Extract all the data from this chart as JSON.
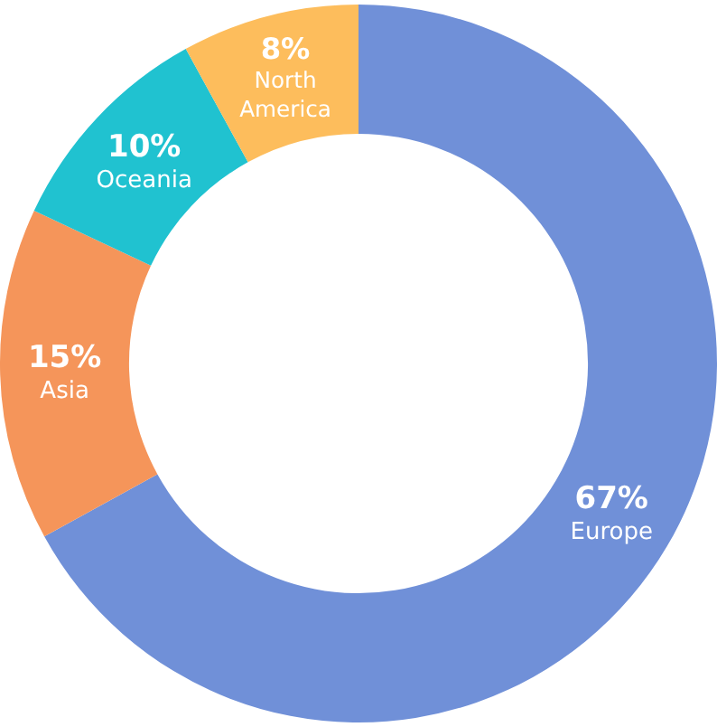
{
  "chart_data": {
    "type": "donut",
    "categories": [
      "Europe",
      "Asia",
      "Oceania",
      "North America"
    ],
    "values": [
      67,
      15,
      10,
      8
    ],
    "value_labels": [
      "67%",
      "15%",
      "10%",
      "8%"
    ],
    "colors": [
      "#7090d8",
      "#f5955a",
      "#20c2d0",
      "#fdbd5c"
    ],
    "legend": false
  }
}
